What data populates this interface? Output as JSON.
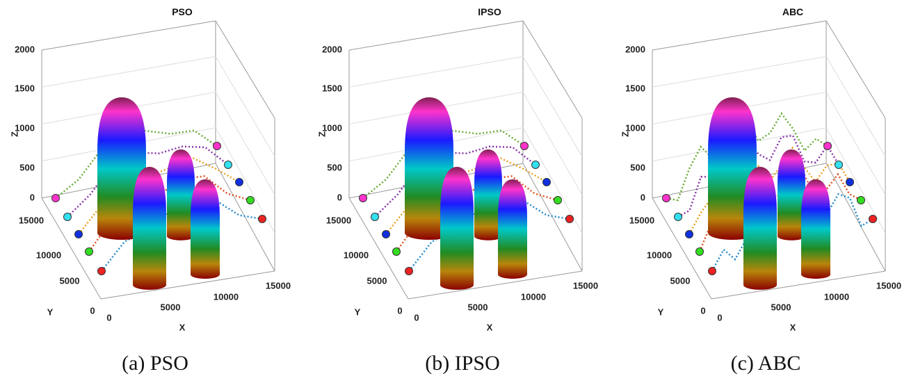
{
  "panels": [
    {
      "title": "PSO",
      "caption": "(a) PSO",
      "x_label": "X",
      "y_label": "Y",
      "z_label": "Z",
      "z_ticks": [
        0,
        500,
        1000,
        1500,
        2000
      ],
      "y_ticks": [
        0,
        5000,
        10000,
        15000
      ],
      "x_ticks": [
        0,
        5000,
        10000,
        15000
      ]
    },
    {
      "title": "IPSO",
      "caption": "(b) IPSO",
      "x_label": "X",
      "y_label": "Y",
      "z_label": "Z",
      "z_ticks": [
        0,
        500,
        1000,
        1500,
        2000
      ],
      "y_ticks": [
        0,
        5000,
        10000,
        15000
      ],
      "x_ticks": [
        0,
        5000,
        10000,
        15000
      ]
    },
    {
      "title": "ABC",
      "caption": "(c) ABC",
      "x_label": "X",
      "y_label": "Y",
      "z_label": "Z",
      "z_ticks": [
        0,
        500,
        1000,
        1500,
        2000
      ],
      "y_ticks": [
        0,
        5000,
        10000,
        15000
      ],
      "x_ticks": [
        0,
        5000,
        10000,
        15000
      ]
    }
  ]
}
